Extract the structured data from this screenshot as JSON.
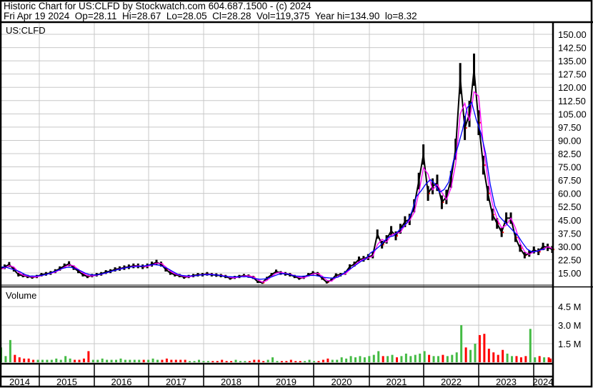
{
  "header": {
    "title": "Historic Chart for US:CLFD by Stockwatch.com 604.687.1500 - (c) 2024",
    "quote": "Fri Apr 19 2024  Op=28.11  Hi=28.67  Lo=28.05  Cl=28.28  Vol=119,375  Year hi=134.90  lo=8.32"
  },
  "colors": {
    "price": "#000000",
    "down_tick": "#ff0000",
    "ma_short": "#ff00ff",
    "ma_long": "#0000ff",
    "vol_up": "#44bb44",
    "vol_down": "#ff0000",
    "grid": "#c8c8c8"
  },
  "chart_data": [
    {
      "type": "line",
      "title": "US:CLFD",
      "x_start": "2014-04",
      "x_interval": "month",
      "ylim": [
        8,
        155
      ],
      "y_ticks": [
        "150.00",
        "142.50",
        "135.00",
        "127.50",
        "120.00",
        "112.50",
        "105.00",
        "97.50",
        "90.00",
        "82.50",
        "75.00",
        "67.50",
        "60.00",
        "52.50",
        "45.00",
        "37.50",
        "30.00",
        "22.50",
        "15.00"
      ],
      "grid": true,
      "series": [
        {
          "values": [
            17,
            18.5,
            19.8,
            17,
            14,
            13.5,
            13,
            12.6,
            13,
            14,
            14.5,
            15,
            16,
            17.5,
            19,
            20.2,
            18,
            16,
            14,
            13,
            13.5,
            14,
            14.5,
            15.5,
            16,
            17,
            17.5,
            18,
            18.5,
            19,
            19,
            18.5,
            19,
            20,
            21,
            20,
            17,
            15,
            14,
            13.5,
            12.6,
            13,
            13.5,
            14,
            14,
            14.5,
            14,
            13.8,
            13.5,
            13,
            12,
            12.5,
            13,
            13.5,
            13.2,
            12.5,
            10,
            9.5,
            12,
            14,
            15.8,
            15,
            14.5,
            14,
            13,
            12,
            12.5,
            14,
            15,
            14.5,
            12,
            9.7,
            11,
            13.8,
            14,
            15,
            18.6,
            20,
            22.7,
            23,
            24,
            25,
            37,
            31,
            34,
            38.8,
            36,
            40,
            44,
            45.3,
            53,
            67,
            82,
            60,
            64,
            66,
            55,
            58,
            68,
            85,
            125,
            97,
            105,
            130,
            100,
            76,
            60,
            48,
            43,
            38,
            46,
            46,
            35,
            29,
            25,
            26,
            28,
            27,
            30,
            29.5,
            28.3
          ]
        }
      ]
    },
    {
      "type": "bar",
      "title": "Volume",
      "x_start": "2014-04",
      "x_interval": "month",
      "y_ticks": [
        "4.5 M",
        "3.0 M",
        "1.5 M"
      ],
      "ylim": [
        0,
        5.5
      ],
      "unit": "M",
      "values": [
        1.2,
        0.5,
        1.8,
        0.6,
        0.4,
        0.3,
        0.3,
        0.2,
        0.2,
        0.2,
        0.2,
        0.2,
        0.3,
        0.2,
        0.5,
        0.3,
        0.2,
        0.2,
        0.3,
        0.9,
        0.2,
        0.2,
        0.3,
        0.2,
        0.2,
        0.2,
        0.3,
        0.2,
        0.2,
        0.2,
        0.2,
        0.2,
        0.2,
        0.3,
        0.2,
        0.2,
        0.3,
        0.2,
        0.2,
        0.2,
        0.2,
        0.1,
        0.1,
        0.2,
        0.1,
        0.1,
        0.1,
        0.1,
        0.2,
        0.1,
        0.1,
        0.2,
        0.1,
        0.1,
        0.1,
        0.2,
        0.2,
        0.1,
        0.2,
        0.4,
        0.1,
        0.1,
        0.1,
        0.2,
        0.1,
        0.1,
        0.1,
        0.2,
        0.1,
        0.1,
        0.2,
        0.3,
        0.2,
        0.2,
        0.4,
        0.3,
        0.5,
        0.4,
        0.5,
        0.4,
        0.5,
        0.6,
        0.9,
        0.5,
        0.5,
        0.6,
        0.4,
        0.5,
        0.7,
        0.5,
        0.6,
        0.7,
        0.9,
        0.6,
        0.5,
        0.5,
        0.6,
        0.5,
        0.6,
        0.8,
        3.0,
        1.2,
        1.0,
        1.5,
        2.2,
        2.3,
        1.1,
        0.8,
        0.6,
        1.0,
        0.7,
        0.5,
        0.5,
        0.4,
        0.5,
        2.7,
        0.4,
        0.5,
        0.4,
        0.4,
        0.3
      ]
    }
  ],
  "x_axis": {
    "years": [
      "2014",
      "2015",
      "2016",
      "2017",
      "2018",
      "2019",
      "2020",
      "2021",
      "2022",
      "2023",
      "2024"
    ]
  }
}
